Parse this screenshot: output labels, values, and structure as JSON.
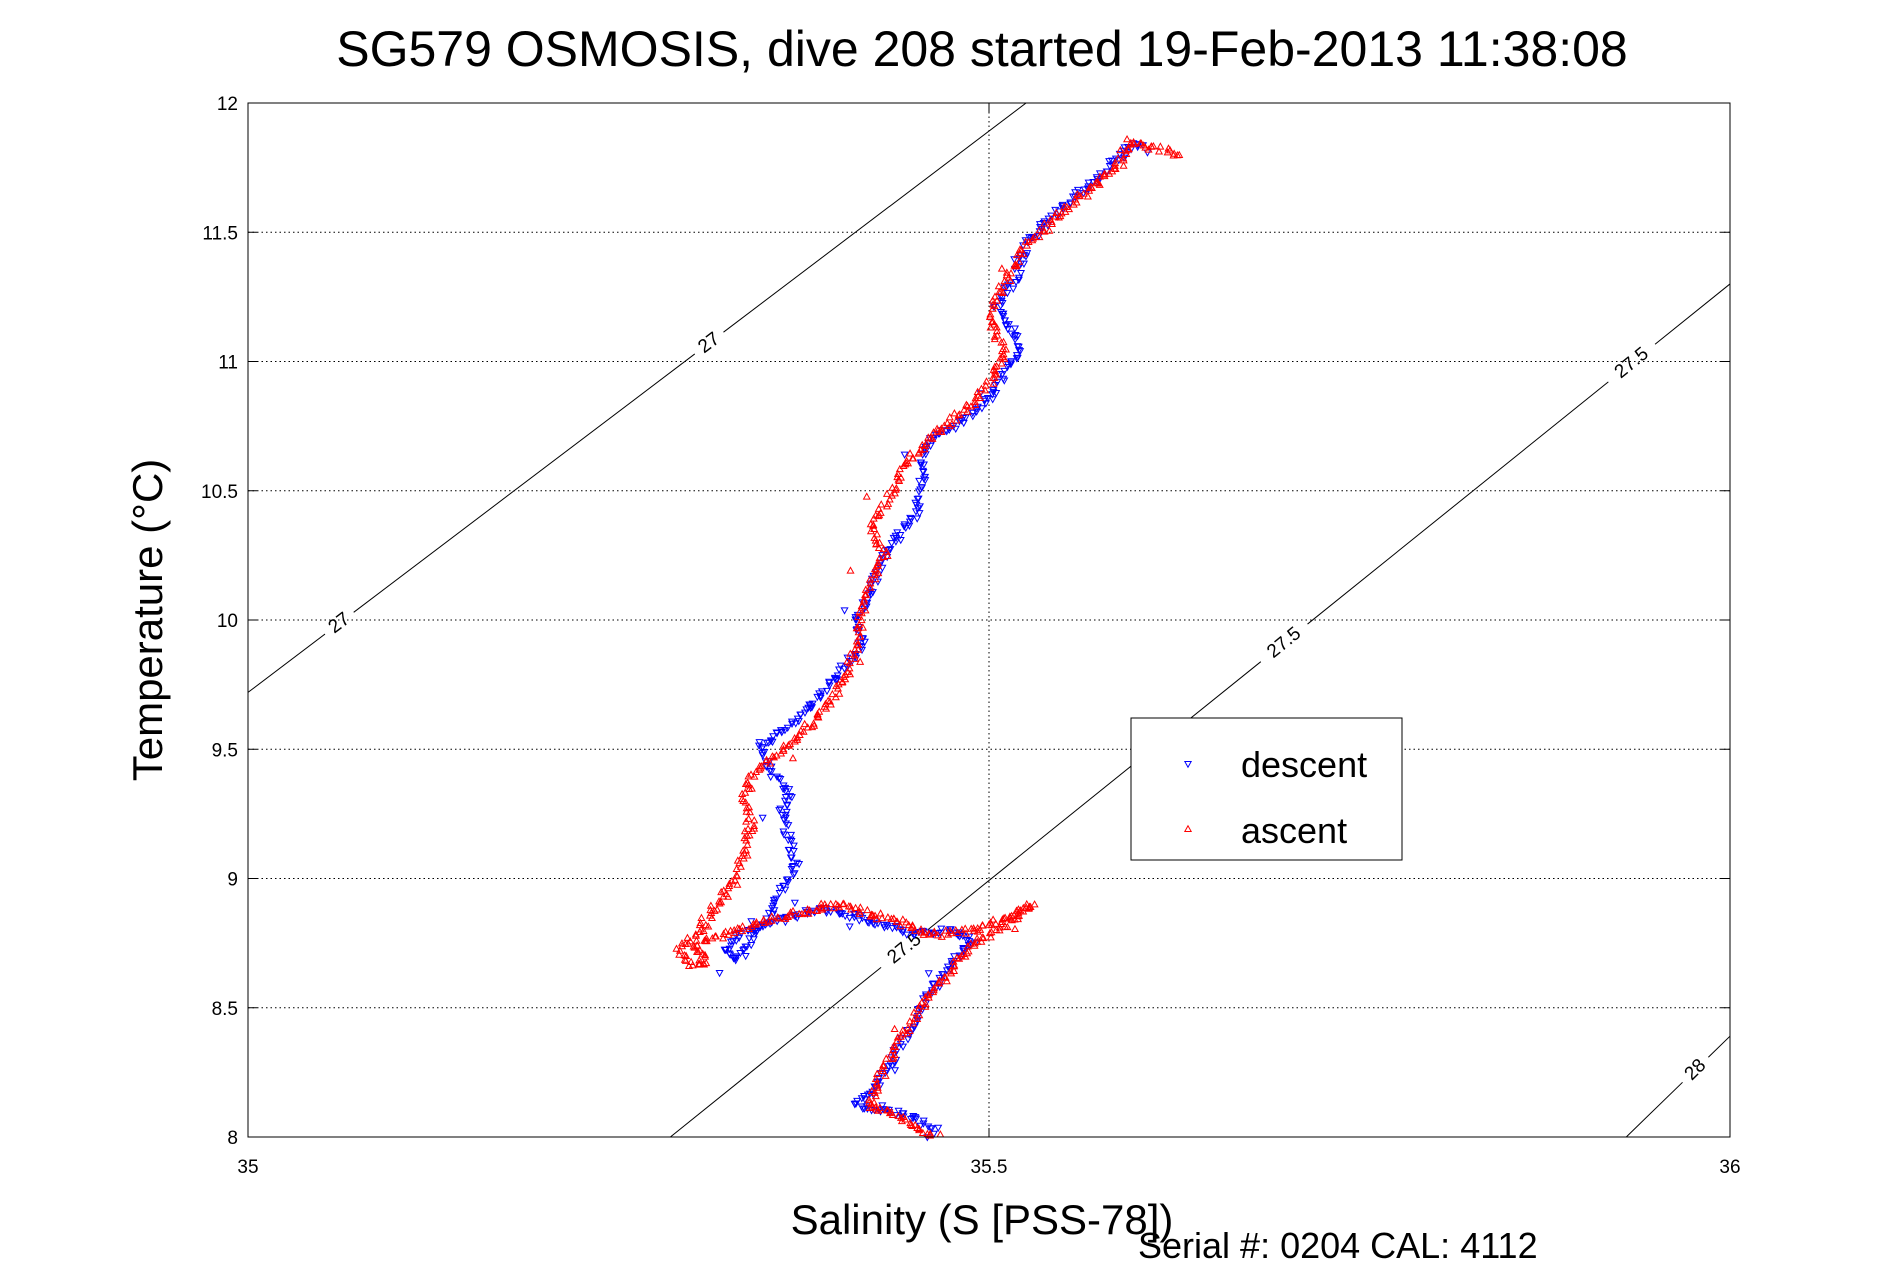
{
  "chart_data": {
    "type": "scatter",
    "title": "SG579 OSMOSIS, dive 208 started 19-Feb-2013 11:38:08",
    "xlabel": "Salinity (S [PSS-78])",
    "ylabel": "Temperature (°C)",
    "xlim": [
      35,
      36
    ],
    "ylim": [
      8,
      12
    ],
    "x_ticks": [
      35,
      35.5,
      36
    ],
    "x_tick_labels": [
      "35",
      "35.5",
      "36"
    ],
    "y_ticks": [
      8,
      8.5,
      9,
      9.5,
      10,
      10.5,
      11,
      11.5,
      12
    ],
    "y_tick_labels": [
      "8",
      "8.5",
      "9",
      "9.5",
      "10",
      "10.5",
      "11",
      "11.5",
      "12"
    ],
    "grid": true,
    "legend": {
      "position": "center-right",
      "entries": [
        "descent",
        "ascent"
      ]
    },
    "series": [
      {
        "name": "descent",
        "color": "#0000ff",
        "marker": "triangle-down",
        "path": [
          [
            35.465,
            8.02
          ],
          [
            35.455,
            8.05
          ],
          [
            35.445,
            8.08
          ],
          [
            35.43,
            8.1
          ],
          [
            35.41,
            8.12
          ],
          [
            35.425,
            8.2
          ],
          [
            35.435,
            8.3
          ],
          [
            35.445,
            8.4
          ],
          [
            35.455,
            8.5
          ],
          [
            35.465,
            8.6
          ],
          [
            35.475,
            8.68
          ],
          [
            35.49,
            8.76
          ],
          [
            35.47,
            8.8
          ],
          [
            35.45,
            8.78
          ],
          [
            35.43,
            8.82
          ],
          [
            35.41,
            8.85
          ],
          [
            35.39,
            8.88
          ],
          [
            35.37,
            8.86
          ],
          [
            35.35,
            8.82
          ],
          [
            35.33,
            8.78
          ],
          [
            35.32,
            8.72
          ],
          [
            35.33,
            8.68
          ],
          [
            35.34,
            8.75
          ],
          [
            35.35,
            8.85
          ],
          [
            35.36,
            8.95
          ],
          [
            35.37,
            9.05
          ],
          [
            35.365,
            9.15
          ],
          [
            35.36,
            9.25
          ],
          [
            35.365,
            9.32
          ],
          [
            35.355,
            9.4
          ],
          [
            35.345,
            9.5
          ],
          [
            35.355,
            9.55
          ],
          [
            35.37,
            9.6
          ],
          [
            35.385,
            9.7
          ],
          [
            35.4,
            9.8
          ],
          [
            35.415,
            9.9
          ],
          [
            35.41,
            10.0
          ],
          [
            35.42,
            10.1
          ],
          [
            35.425,
            10.2
          ],
          [
            35.435,
            10.3
          ],
          [
            35.45,
            10.4
          ],
          [
            35.455,
            10.5
          ],
          [
            35.455,
            10.6
          ],
          [
            35.46,
            10.7
          ],
          [
            35.48,
            10.76
          ],
          [
            35.5,
            10.85
          ],
          [
            35.51,
            10.95
          ],
          [
            35.52,
            11.05
          ],
          [
            35.513,
            11.15
          ],
          [
            35.505,
            11.22
          ],
          [
            35.515,
            11.3
          ],
          [
            35.52,
            11.35
          ],
          [
            35.525,
            11.45
          ],
          [
            35.54,
            11.55
          ],
          [
            35.56,
            11.65
          ],
          [
            35.575,
            11.72
          ],
          [
            35.585,
            11.78
          ],
          [
            35.595,
            11.83
          ],
          [
            35.605,
            11.85
          ]
        ]
      },
      {
        "name": "ascent",
        "color": "#ff0000",
        "marker": "triangle-up",
        "path": [
          [
            35.46,
            8.0
          ],
          [
            35.45,
            8.05
          ],
          [
            35.43,
            8.1
          ],
          [
            35.42,
            8.12
          ],
          [
            35.425,
            8.22
          ],
          [
            35.435,
            8.32
          ],
          [
            35.445,
            8.42
          ],
          [
            35.46,
            8.55
          ],
          [
            35.475,
            8.65
          ],
          [
            35.49,
            8.75
          ],
          [
            35.51,
            8.82
          ],
          [
            35.53,
            8.9
          ],
          [
            35.515,
            8.85
          ],
          [
            35.49,
            8.8
          ],
          [
            35.46,
            8.78
          ],
          [
            35.44,
            8.83
          ],
          [
            35.42,
            8.86
          ],
          [
            35.4,
            8.9
          ],
          [
            35.38,
            8.88
          ],
          [
            35.36,
            8.85
          ],
          [
            35.34,
            8.82
          ],
          [
            35.32,
            8.78
          ],
          [
            35.3,
            8.74
          ],
          [
            35.31,
            8.68
          ],
          [
            35.3,
            8.66
          ],
          [
            35.29,
            8.72
          ],
          [
            35.305,
            8.8
          ],
          [
            35.315,
            8.9
          ],
          [
            35.33,
            9.0
          ],
          [
            35.335,
            9.1
          ],
          [
            35.34,
            9.2
          ],
          [
            35.335,
            9.3
          ],
          [
            35.34,
            9.4
          ],
          [
            35.36,
            9.5
          ],
          [
            35.38,
            9.6
          ],
          [
            35.395,
            9.7
          ],
          [
            35.405,
            9.8
          ],
          [
            35.41,
            9.9
          ],
          [
            35.415,
            10.05
          ],
          [
            35.42,
            10.15
          ],
          [
            35.43,
            10.25
          ],
          [
            35.42,
            10.35
          ],
          [
            35.43,
            10.45
          ],
          [
            35.44,
            10.55
          ],
          [
            35.445,
            10.62
          ],
          [
            35.47,
            10.75
          ],
          [
            35.49,
            10.85
          ],
          [
            35.505,
            10.95
          ],
          [
            35.51,
            11.05
          ],
          [
            35.5,
            11.15
          ],
          [
            35.505,
            11.25
          ],
          [
            35.515,
            11.35
          ],
          [
            35.525,
            11.45
          ],
          [
            35.545,
            11.55
          ],
          [
            35.56,
            11.63
          ],
          [
            35.575,
            11.7
          ],
          [
            35.585,
            11.75
          ],
          [
            35.59,
            11.8
          ],
          [
            35.595,
            11.85
          ],
          [
            35.63,
            11.8
          ]
        ]
      }
    ],
    "density_contours": [
      {
        "label": "27",
        "points": [
          [
            35.0,
            9.72
          ],
          [
            35.525,
            12.0
          ]
        ],
        "label_points": [
          [
            35.06,
            10.0
          ],
          [
            35.31,
            11.08
          ]
        ]
      },
      {
        "label": "27.5",
        "points": [
          [
            35.285,
            8.0
          ],
          [
            36.0,
            11.3
          ]
        ],
        "label_points": [
          [
            35.44,
            8.75
          ],
          [
            35.705,
            9.87
          ],
          [
            35.93,
            11.02
          ]
        ]
      },
      {
        "label": "28",
        "points": [
          [
            35.93,
            8.0
          ],
          [
            36.0,
            8.39
          ]
        ],
        "label_points": [
          [
            35.975,
            8.27
          ]
        ]
      }
    ]
  },
  "footer": {
    "serial": "Serial #: 0204  CAL: 4112"
  }
}
